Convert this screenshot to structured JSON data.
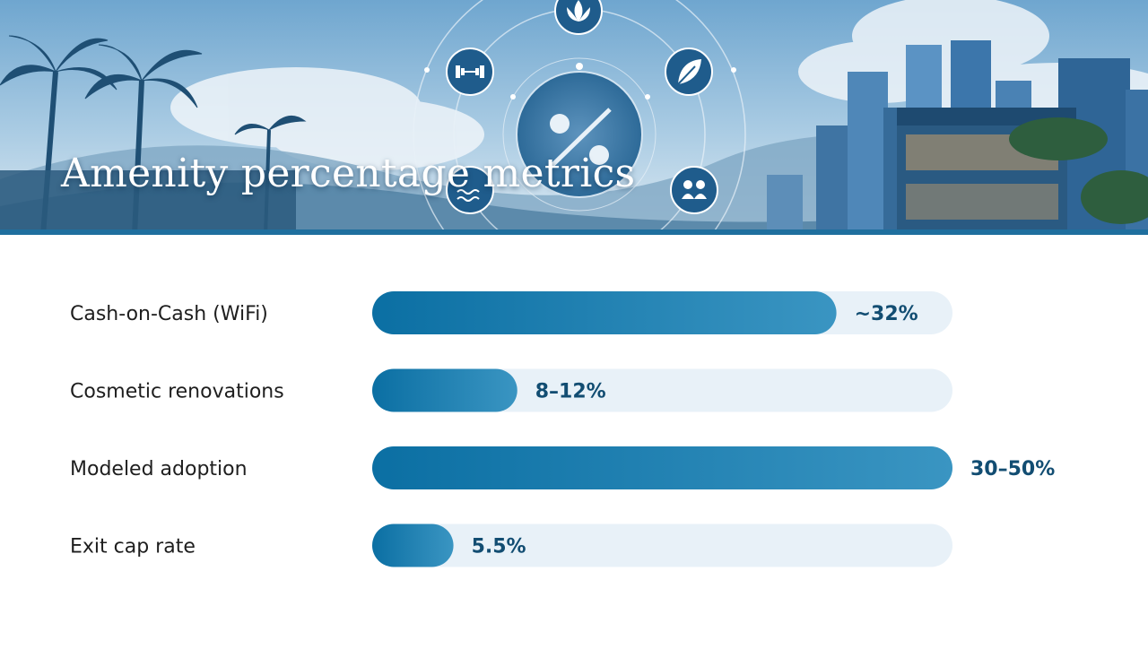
{
  "title": "Amenity percentage metrics",
  "colors": {
    "bar_dark": "#0b6fa3",
    "bar_light": "#3a95c2",
    "track": "#e8f1f8",
    "value_text": "#124d72",
    "accent_rule": "#1f6f9e"
  },
  "banner_icons": [
    "lotus-icon",
    "dumbbell-icon",
    "leaf-icon",
    "percent-icon",
    "people-icon",
    "pool-icon"
  ],
  "chart_data": {
    "type": "bar",
    "orientation": "horizontal",
    "title": "Amenity percentage metrics",
    "xlim": [
      0,
      50
    ],
    "categories": [
      "Cash-on-Cash (WiFi)",
      "Cosmetic renovations",
      "Modeled adoption",
      "Exit cap rate"
    ],
    "values": [
      40,
      12.5,
      50,
      7
    ],
    "value_labels": [
      "~32%",
      "8–12%",
      "30–50%",
      "5.5%"
    ]
  }
}
